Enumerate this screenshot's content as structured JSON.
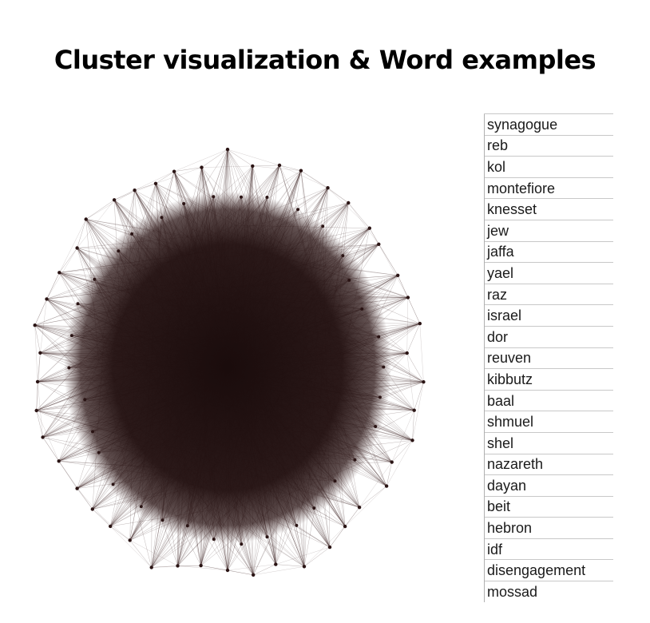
{
  "title": "Cluster visualization & Word examples",
  "colors": {
    "edge": "#3a1f1f",
    "core": "#1e0f0f",
    "node": "#2a1414"
  },
  "words": [
    "synagogue",
    "reb",
    "kol",
    "montefiore",
    "knesset",
    "jew",
    "jaffa",
    "yael",
    "raz",
    "israel",
    "dor",
    "reuven",
    "kibbutz",
    "baal",
    "shmuel",
    "shel",
    "nazareth",
    "dayan",
    "beit",
    "hebron",
    "idf",
    "disengagement",
    "mossad"
  ]
}
